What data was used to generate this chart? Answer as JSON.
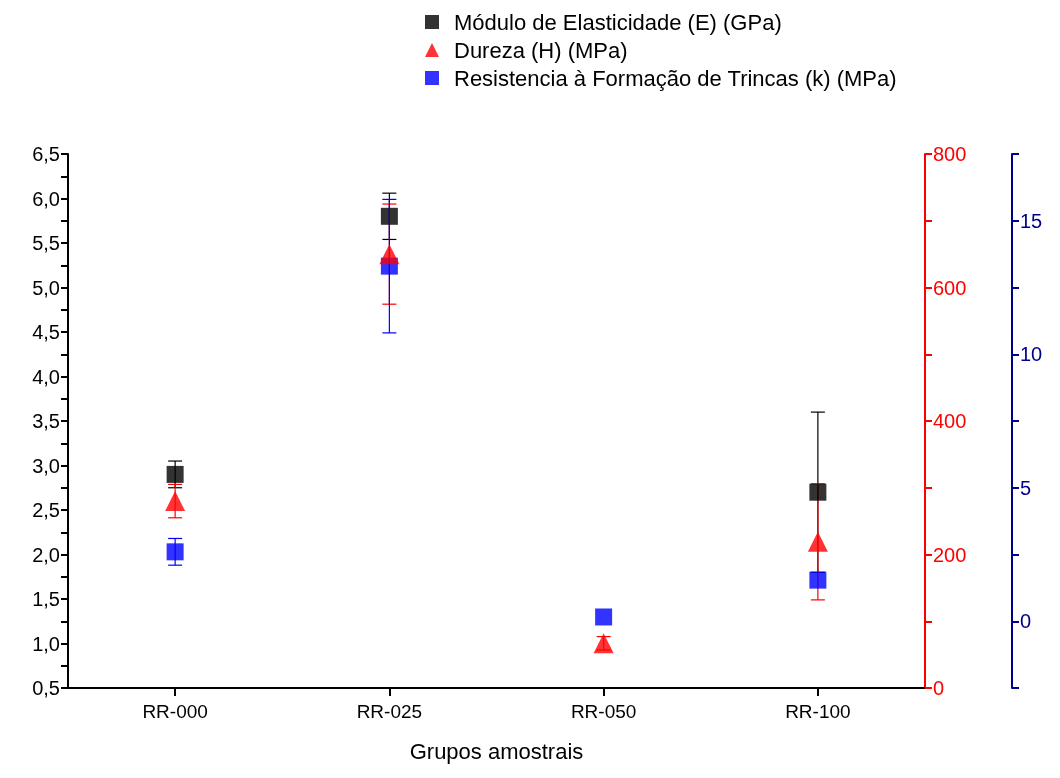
{
  "chart_data": {
    "type": "scatter",
    "xlabel": "Grupos amostrais",
    "categories": [
      "RR-000",
      "RR-025",
      "RR-050",
      "RR-100"
    ],
    "series": [
      {
        "name": "Módulo de Elasticidade (E) (GPa)",
        "color": "#000000",
        "marker": "square",
        "axis": "y",
        "values": [
          2.9,
          5.8,
          null,
          2.7
        ],
        "errors": [
          0.15,
          0.26,
          null,
          0.9
        ]
      },
      {
        "name": "Dureza (H) (MPa)",
        "color": "#ff0000",
        "marker": "triangle",
        "axis": "y2",
        "values": [
          280,
          650,
          67,
          219
        ],
        "errors": [
          25,
          75,
          10,
          87
        ]
      },
      {
        "name": "Resistencia à Formação de Trincas (k) (MPa)",
        "color": "#0000ff",
        "marker": "square",
        "axis": "y3",
        "values": [
          2.6,
          13.3,
          0.16,
          1.54
        ],
        "errors": [
          0.5,
          2.5,
          null,
          null
        ]
      }
    ],
    "ylim": [
      0.5,
      6.5
    ],
    "yticks": [
      {
        "value": 0.5,
        "label": "0,5"
      },
      {
        "value": 0.75,
        "label": null
      },
      {
        "value": 1,
        "label": "1,0"
      },
      {
        "value": 1.25,
        "label": null
      },
      {
        "value": 1.5,
        "label": "1,5"
      },
      {
        "value": 1.75,
        "label": null
      },
      {
        "value": 2,
        "label": "2,0"
      },
      {
        "value": 2.25,
        "label": null
      },
      {
        "value": 2.5,
        "label": "2,5"
      },
      {
        "value": 2.75,
        "label": null
      },
      {
        "value": 3,
        "label": "3,0"
      },
      {
        "value": 3.25,
        "label": null
      },
      {
        "value": 3.5,
        "label": "3,5"
      },
      {
        "value": 3.75,
        "label": null
      },
      {
        "value": 4,
        "label": "4,0"
      },
      {
        "value": 4.25,
        "label": null
      },
      {
        "value": 4.5,
        "label": "4,5"
      },
      {
        "value": 4.75,
        "label": null
      },
      {
        "value": 5,
        "label": "5,0"
      },
      {
        "value": 5.25,
        "label": null
      },
      {
        "value": 5.5,
        "label": "5,5"
      },
      {
        "value": 5.75,
        "label": null
      },
      {
        "value": 6,
        "label": "6,0"
      },
      {
        "value": 6.25,
        "label": null
      },
      {
        "value": 6.5,
        "label": "6,5"
      }
    ],
    "y2lim": [
      0,
      800
    ],
    "y2ticks": [
      0,
      {
        "value": 100,
        "label": null
      },
      200,
      {
        "value": 300,
        "label": null
      },
      400,
      {
        "value": 500,
        "label": null
      },
      600,
      {
        "value": 700,
        "label": null
      },
      800
    ],
    "y3lim": [
      -2.5,
      17.5
    ],
    "y3ticks": [
      {
        "value": -2.5,
        "label": null
      },
      0,
      {
        "value": 2.5,
        "label": null
      },
      5,
      {
        "value": 7.5,
        "label": null
      },
      10,
      {
        "value": 12.5,
        "label": null
      },
      15,
      {
        "value": 17.5,
        "label": null
      }
    ],
    "grid": false,
    "legend": "top right"
  }
}
